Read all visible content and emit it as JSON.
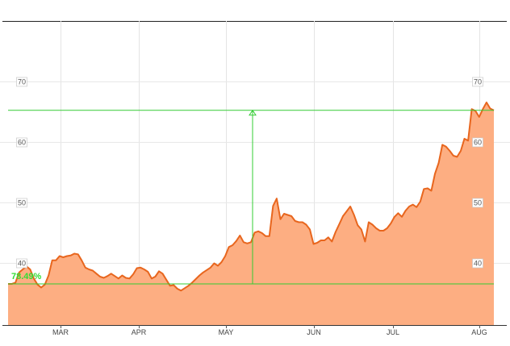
{
  "chart_data": {
    "type": "area",
    "title": "",
    "xlabel": "",
    "ylabel": "",
    "ylim": [
      30,
      79
    ],
    "y_ticks": [
      40,
      50,
      60,
      70
    ],
    "x_month_labels": [
      "MAR",
      "APR",
      "MAY",
      "JUN",
      "JUL",
      "AUG"
    ],
    "grid": true,
    "line_color": "#e8661e",
    "fill_color": "#fdae82",
    "measure_color": "#33cc33",
    "measurement": {
      "label": "78.49%",
      "start_value": 36.6,
      "end_value": 65.3
    },
    "series": [
      {
        "values": [
          36.6,
          36.6,
          36.8,
          38.5,
          39.0,
          39.5,
          39.0,
          37.5,
          36.5,
          36.0,
          36.5,
          38.0,
          40.5,
          40.5,
          41.2,
          41.0,
          41.2,
          41.3,
          41.6,
          41.5,
          40.5,
          39.3,
          39.0,
          38.8,
          38.3,
          37.8,
          37.6,
          37.9,
          38.3,
          37.9,
          37.5,
          38.0,
          37.6,
          37.5,
          38.2,
          39.2,
          39.3,
          39.0,
          38.6,
          37.5,
          37.8,
          38.7,
          38.3,
          37.3,
          36.3,
          36.4,
          35.8,
          35.5,
          35.9,
          36.3,
          36.8,
          37.4,
          38.0,
          38.5,
          38.9,
          39.3,
          40.0,
          39.6,
          40.2,
          41.2,
          42.7,
          43.0,
          43.7,
          44.6,
          43.5,
          43.3,
          43.5,
          45.1,
          45.3,
          45.0,
          44.5,
          44.5,
          49.5,
          50.7,
          47.3,
          48.2,
          48.0,
          47.8,
          47.0,
          46.8,
          46.8,
          46.4,
          45.6,
          43.2,
          43.4,
          43.8,
          43.8,
          44.3,
          43.6,
          45.2,
          46.5,
          47.8,
          48.6,
          49.4,
          48.0,
          46.3,
          45.6,
          43.6,
          46.8,
          46.4,
          45.8,
          45.4,
          45.4,
          45.8,
          46.6,
          47.7,
          48.3,
          47.7,
          48.7,
          49.4,
          49.7,
          49.3,
          50.2,
          52.3,
          52.4,
          52.0,
          54.8,
          56.6,
          59.6,
          59.3,
          58.6,
          57.8,
          57.6,
          58.6,
          60.6,
          60.3,
          65.5,
          65.2,
          64.2,
          65.5,
          66.6,
          65.6,
          65.3
        ]
      }
    ]
  }
}
